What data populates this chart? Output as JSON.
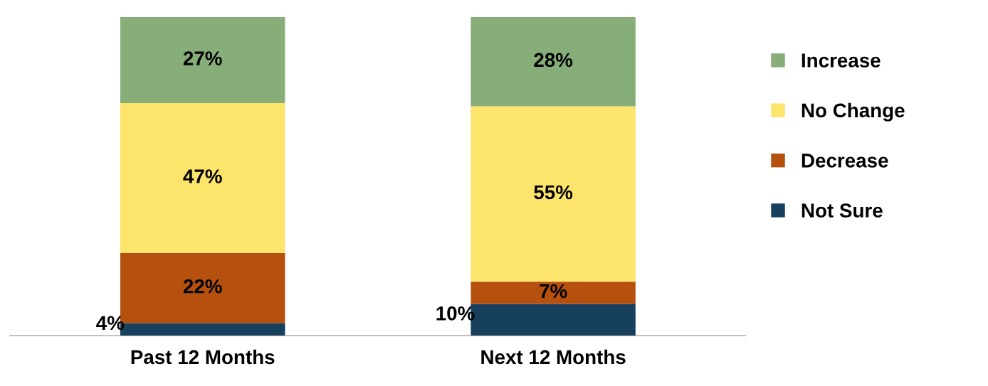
{
  "chart_data": {
    "type": "bar",
    "stacked": true,
    "categories": [
      "Past 12 Months",
      "Next 12 Months"
    ],
    "series": [
      {
        "name": "Not Sure",
        "color": "#17405e",
        "values": [
          4,
          10
        ],
        "value_labels": [
          "4%",
          "10%"
        ]
      },
      {
        "name": "Decrease",
        "color": "#b5500f",
        "values": [
          22,
          7
        ],
        "value_labels": [
          "22%",
          "7%"
        ]
      },
      {
        "name": "No Change",
        "color": "#fde46b",
        "values": [
          47,
          55
        ],
        "value_labels": [
          "47%",
          "55%"
        ]
      },
      {
        "name": "Increase",
        "color": "#87ae78",
        "values": [
          27,
          28
        ],
        "value_labels": [
          "27%",
          "28%"
        ]
      }
    ],
    "legend": "right",
    "grid": false
  }
}
